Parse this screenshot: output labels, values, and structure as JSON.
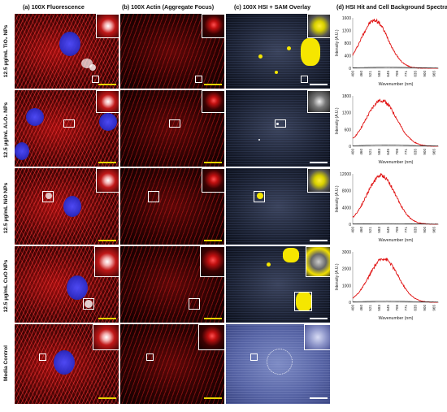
{
  "headers": {
    "a": "(a) 100X Fluorescence",
    "b": "(b) 100X Actin (Aggregate Focus)",
    "c": "(c) 100X HSI + SAM Overlay",
    "d": "(d) HSI Hit and Cell Background Spectra"
  },
  "rows": [
    {
      "label": "12.5 μg/mL TiO₂ NPs"
    },
    {
      "label": "12.5 μg/mL Al₂O₃ NPs"
    },
    {
      "label": "12.5 μg/mL NiO NPs"
    },
    {
      "label": "12.5 μg/mL CuO NPs"
    },
    {
      "label": "Media Control"
    }
  ],
  "colors": {
    "hit": "#e01010",
    "background": "#111111",
    "scale_fluor": "#e8d400",
    "scale_hsi": "#ffffff"
  },
  "chart_data": [
    {
      "type": "line",
      "xlabel": "Wavenumber (nm)",
      "ylabel": "Intensity (A.U.)",
      "x_ticks": [
        "400",
        "460",
        "521",
        "583",
        "645",
        "708",
        "771",
        "835",
        "900",
        "965"
      ],
      "y_ticks": [
        "0",
        "400",
        "800",
        "1200",
        "1600"
      ],
      "ylim": [
        0,
        1600
      ],
      "series": [
        {
          "color": "#e01010",
          "peak_x": 552,
          "peak_y": 1520,
          "width": 95
        },
        {
          "color": "#111111",
          "peak_x": 640,
          "peak_y": 30,
          "width": 200
        }
      ]
    },
    {
      "type": "line",
      "xlabel": "Wavenumber (nm)",
      "ylabel": "Intensity (A.U.)",
      "x_ticks": [
        "400",
        "460",
        "521",
        "583",
        "645",
        "708",
        "771",
        "835",
        "900",
        "965"
      ],
      "y_ticks": [
        "0",
        "600",
        "1200",
        "1800"
      ],
      "ylim": [
        0,
        1800
      ],
      "series": [
        {
          "color": "#e01010",
          "peak_x": 600,
          "peak_y": 1640,
          "width": 105
        },
        {
          "color": "#111111",
          "peak_x": 640,
          "peak_y": 40,
          "width": 200
        }
      ]
    },
    {
      "type": "line",
      "xlabel": "Wavenumber (nm)",
      "ylabel": "Intensity (A.U.)",
      "x_ticks": [
        "400",
        "460",
        "521",
        "583",
        "645",
        "708",
        "771",
        "835",
        "900",
        "965"
      ],
      "y_ticks": [
        "0",
        "4000",
        "8000",
        "12000"
      ],
      "ylim": [
        0,
        12000
      ],
      "series": [
        {
          "color": "#e01010",
          "peak_x": 598,
          "peak_y": 11600,
          "width": 100
        },
        {
          "color": "#111111",
          "peak_x": 640,
          "peak_y": 150,
          "width": 200
        }
      ]
    },
    {
      "type": "line",
      "xlabel": "Wavenumber (nm)",
      "ylabel": "Intensity (A.U.)",
      "x_ticks": [
        "400",
        "460",
        "521",
        "583",
        "645",
        "708",
        "771",
        "835",
        "900",
        "965"
      ],
      "y_ticks": [
        "0",
        "1000",
        "2000",
        "3000"
      ],
      "ylim": [
        0,
        3000
      ],
      "series": [
        {
          "color": "#e01010",
          "peak_x": 615,
          "peak_y": 2600,
          "width": 100
        },
        {
          "color": "#111111",
          "peak_x": 640,
          "peak_y": 60,
          "width": 200
        }
      ]
    }
  ]
}
